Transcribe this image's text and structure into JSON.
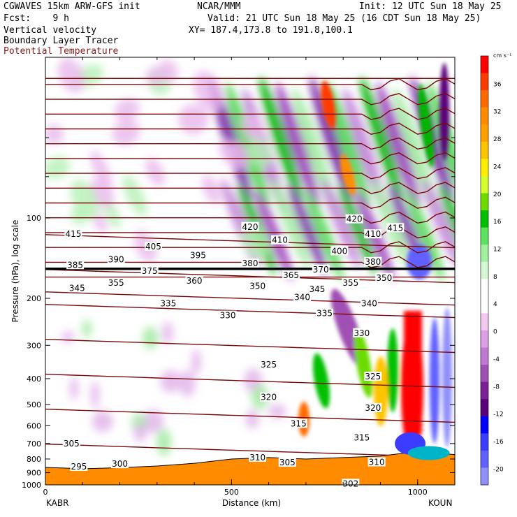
{
  "header": {
    "model": "CGWAVES 15km ARW-GFS init",
    "org": "NCAR/MMM",
    "init": "Init: 12 UTC Sun 18 May 25",
    "fcst": "Fcst:    9 h",
    "valid": "Valid: 21 UTC Sun 18 May 25 (16 CDT Sun 18 May 25)",
    "field1": "Vertical velocity",
    "field2": "Boundary Layer Tracer",
    "field3": "Potential Temperature",
    "xy": "XY= 187.4,173.8 to 191.8,100.1"
  },
  "chart_data": {
    "type": "heatmap",
    "title": "Vertical velocity",
    "xlabel": "Distance (km)",
    "ylabel": "Pressure (hPa), log scale",
    "x_ticks": [
      0,
      500,
      1000
    ],
    "xlim": [
      0,
      1100
    ],
    "y_ticks": [
      100,
      200,
      300,
      400,
      500,
      600,
      700,
      800,
      900,
      1000
    ],
    "ylim": [
      1000,
      25
    ],
    "y_scale": "log",
    "endpoint_labels": {
      "left": "KABR",
      "right": "KOUN"
    },
    "colorbar": {
      "units": "cm s⁻¹",
      "ticks": [
        36,
        32,
        28,
        24,
        20,
        16,
        12,
        8,
        4,
        0,
        -4,
        -8,
        -12,
        -16,
        -20
      ],
      "colors": [
        "#ff0000",
        "#ff3a00",
        "#ff6a00",
        "#ff8c00",
        "#ffa000",
        "#ffc400",
        "#ffee00",
        "#d4ff2a",
        "#6cdc00",
        "#00c000",
        "#5ee35e",
        "#a0f0a0",
        "#d4f8d4",
        "#ffffff",
        "#ffffff",
        "#f0c8f0",
        "#dca0e6",
        "#c078d2",
        "#a050b4",
        "#7c1e96",
        "#5a007a",
        "#0000ff",
        "#3c3cff",
        "#6060ff",
        "#9090f8"
      ]
    },
    "theta_labels": [
      {
        "v": 415,
        "x": 75,
        "p": 115
      },
      {
        "v": 405,
        "x": 290,
        "p": 128
      },
      {
        "v": 420,
        "x": 550,
        "p": 108
      },
      {
        "v": 420,
        "x": 830,
        "p": 101
      },
      {
        "v": 410,
        "x": 630,
        "p": 121
      },
      {
        "v": 410,
        "x": 880,
        "p": 115
      },
      {
        "v": 415,
        "x": 940,
        "p": 109
      },
      {
        "v": 400,
        "x": 790,
        "p": 133
      },
      {
        "v": 395,
        "x": 410,
        "p": 138
      },
      {
        "v": 390,
        "x": 190,
        "p": 143
      },
      {
        "v": 385,
        "x": 80,
        "p": 150
      },
      {
        "v": 380,
        "x": 550,
        "p": 148
      },
      {
        "v": 380,
        "x": 880,
        "p": 146
      },
      {
        "v": 370,
        "x": 740,
        "p": 156
      },
      {
        "v": 375,
        "x": 280,
        "p": 158
      },
      {
        "v": 365,
        "x": 660,
        "p": 164
      },
      {
        "v": 360,
        "x": 400,
        "p": 172
      },
      {
        "v": 355,
        "x": 190,
        "p": 175
      },
      {
        "v": 355,
        "x": 820,
        "p": 175
      },
      {
        "v": 350,
        "x": 570,
        "p": 180
      },
      {
        "v": 350,
        "x": 910,
        "p": 168
      },
      {
        "v": 345,
        "x": 85,
        "p": 183
      },
      {
        "v": 345,
        "x": 730,
        "p": 185
      },
      {
        "v": 340,
        "x": 690,
        "p": 198
      },
      {
        "v": 340,
        "x": 870,
        "p": 209
      },
      {
        "v": 335,
        "x": 330,
        "p": 209
      },
      {
        "v": 335,
        "x": 750,
        "p": 228
      },
      {
        "v": 330,
        "x": 490,
        "p": 232
      },
      {
        "v": 330,
        "x": 850,
        "p": 270
      },
      {
        "v": 325,
        "x": 600,
        "p": 355
      },
      {
        "v": 325,
        "x": 880,
        "p": 393
      },
      {
        "v": 320,
        "x": 600,
        "p": 470
      },
      {
        "v": 320,
        "x": 880,
        "p": 515
      },
      {
        "v": 315,
        "x": 680,
        "p": 590
      },
      {
        "v": 315,
        "x": 850,
        "p": 665
      },
      {
        "v": 310,
        "x": 570,
        "p": 790
      },
      {
        "v": 310,
        "x": 890,
        "p": 822
      },
      {
        "v": 305,
        "x": 70,
        "p": 700
      },
      {
        "v": 305,
        "x": 650,
        "p": 825
      },
      {
        "v": 300,
        "x": 200,
        "p": 835
      },
      {
        "v": 295,
        "x": 90,
        "p": 855
      },
      {
        "v": 302,
        "x": 820,
        "p": 990
      }
    ]
  }
}
